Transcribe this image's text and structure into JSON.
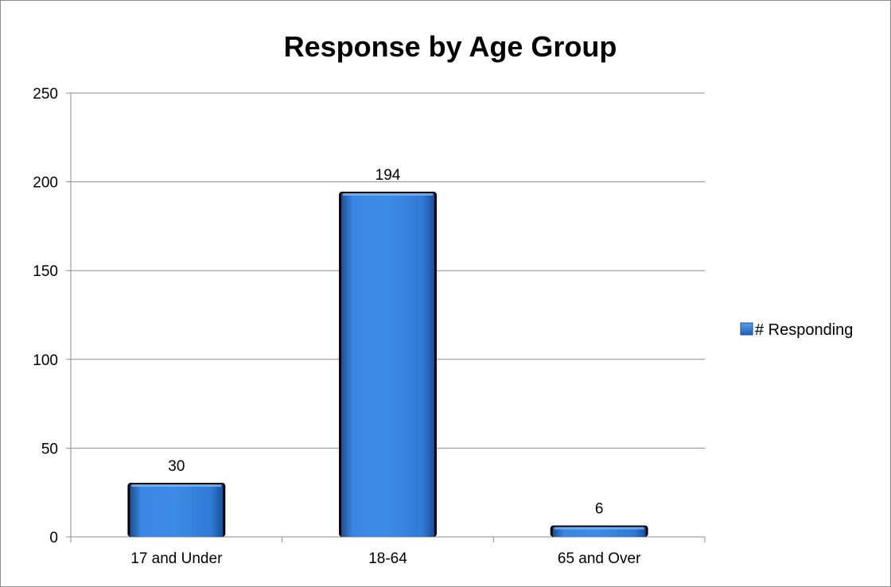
{
  "chart_data": {
    "type": "bar",
    "title": "Response by Age Group",
    "xlabel": "",
    "ylabel": "",
    "categories": [
      "17 and Under",
      "18-64",
      "65 and Over"
    ],
    "series": [
      {
        "name": "# Responding",
        "values": [
          30,
          194,
          6
        ]
      }
    ],
    "data_labels": [
      "30",
      "194",
      "6"
    ],
    "ylim": [
      0,
      250
    ],
    "yticks": [
      0,
      50,
      100,
      150,
      200,
      250
    ],
    "ytick_labels": [
      "0",
      "50",
      "100",
      "150",
      "200",
      "250"
    ],
    "grid": true,
    "legend_position": "right",
    "colors": {
      "bar_fill": "#3b86e2",
      "bar_fill_dark": "#1f5fb5",
      "bar_edge": "#000000",
      "gridline": "#8c8c8c",
      "axis": "#8c8c8c",
      "legend_swatch": "#2f7ad8"
    }
  }
}
